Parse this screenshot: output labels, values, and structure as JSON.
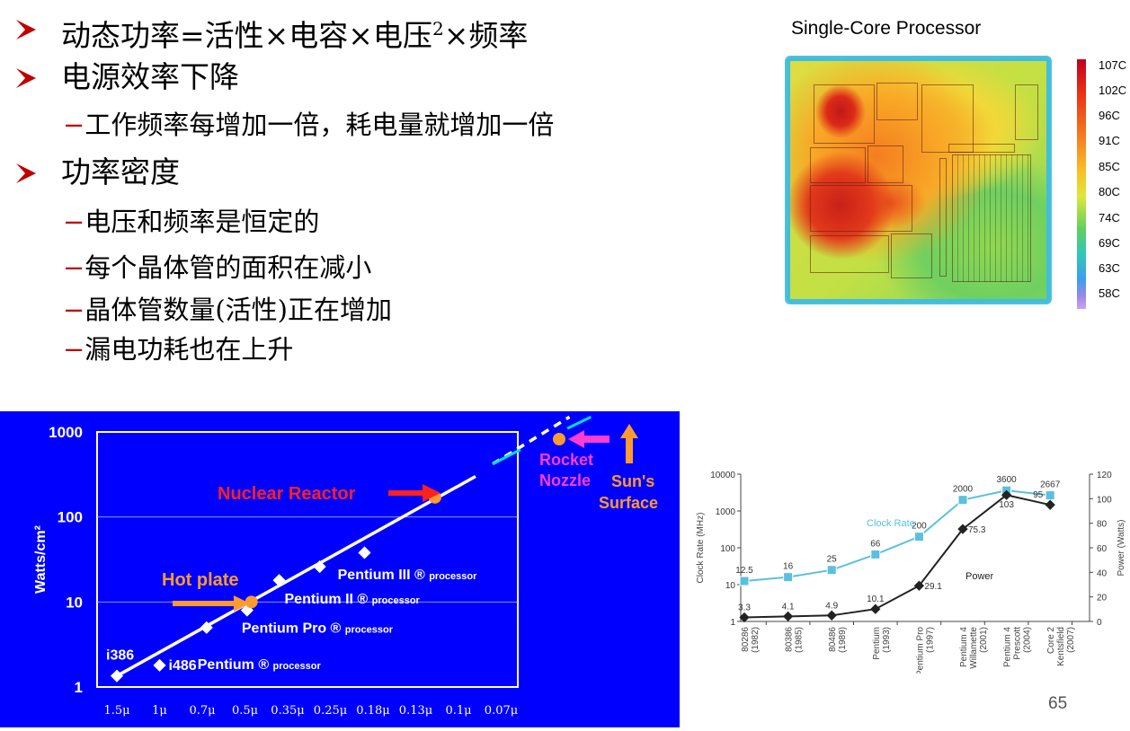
{
  "bullets": [
    {
      "text": "动态功率=活性×电容×电压",
      "sup": "2",
      "tail": "×频率"
    },
    {
      "text": "电源效率下降"
    },
    {
      "text": "功率密度"
    }
  ],
  "sub_bullets": {
    "efficiency": [
      "工作频率每增加一倍，耗电量就增加一倍"
    ],
    "density": [
      "电压和频率是恒定的",
      "每个晶体管的面积在减小",
      "晶体管数量(活性)正在增加",
      "漏电功耗也在上升"
    ]
  },
  "dash": "−",
  "heatmap": {
    "title": "Single-Core Processor",
    "scale_labels": [
      "107C",
      "102C",
      "96C",
      "91C",
      "85C",
      "80C",
      "74C",
      "69C",
      "63C",
      "58C"
    ]
  },
  "page_number": "65",
  "chart_data": [
    {
      "type": "scatter",
      "title": "",
      "ylabel": "Watts/cm²",
      "y_scale": "log",
      "ylim": [
        1,
        1000
      ],
      "y_ticks": [
        "1",
        "10",
        "100",
        "1000"
      ],
      "categories": [
        "1.5μ",
        "1μ",
        "0.7μ",
        "0.5μ",
        "0.35μ",
        "0.25μ",
        "0.18μ",
        "0.13μ",
        "0.1μ",
        "0.07μ"
      ],
      "processors": [
        {
          "name": "i386",
          "label": "i386",
          "x_index": 0.5,
          "y": 1.35
        },
        {
          "name": "i486",
          "label": "i486",
          "x_index": 1.5,
          "y": 1.8
        },
        {
          "name": "Pentium",
          "label": "Pentium ® processor",
          "x_index": 2.6,
          "y": 5
        },
        {
          "name": "Pentium Pro",
          "label": "Pentium Pro ® processor",
          "x_index": 3.55,
          "y": 8
        },
        {
          "name": "Pentium II",
          "label": "Pentium II ® processor",
          "x_index": 4.3,
          "y": 18
        },
        {
          "name": "Pentium III",
          "label": "Pentium III ® processor",
          "x_index": 5.25,
          "y": 26
        },
        {
          "name": "",
          "label": "",
          "x_index": 6.3,
          "y": 38
        }
      ],
      "references": [
        {
          "label": "Hot plate",
          "x_index": 3.65,
          "y": 10
        },
        {
          "label": "Nuclear Reactor",
          "x_index": 7.95,
          "y": 170
        },
        {
          "label": "Rocket Nozzle",
          "x_index": 10.4,
          "y": 850
        },
        {
          "label": "Sun's Surface",
          "x_index": 11.8,
          "y": 900
        }
      ],
      "trend": [
        [
          0.5,
          1.35
        ],
        [
          8.9,
          300
        ]
      ],
      "trend_projection": [
        [
          9.3,
          420
        ],
        [
          11.1,
          1500
        ]
      ],
      "colors": {
        "background": "#0000ff",
        "labels": "#ffffff",
        "hot_plate": "#ff9a2e",
        "nuclear": "#ff2020",
        "rocket": "#ff3cd2",
        "sun": "#ff9a2e",
        "projection": "#00e0e0"
      }
    },
    {
      "type": "line",
      "title": "",
      "categories": [
        "80286 (1982)",
        "80386 (1985)",
        "80486 (1989)",
        "Pentium (1993)",
        "Pentium Pro (1997)",
        "Pentium 4 Willamette (2001)",
        "Pentium 4 Prescott (2004)",
        "Core 2 Kentsfield (2007)"
      ],
      "ylabel_left": "Clock Rate (MHz)",
      "ylabel_right": "Power (Watts)",
      "y_left_scale": "log",
      "y_left_ticks": [
        "1",
        "10",
        "100",
        "1000",
        "10000"
      ],
      "y_right_ticks": [
        "0",
        "20",
        "40",
        "60",
        "80",
        "100",
        "120"
      ],
      "ylim_right": [
        0,
        120
      ],
      "series": [
        {
          "name": "Clock Rate",
          "axis": "left",
          "values": [
            12.5,
            16,
            25,
            66,
            200,
            2000,
            3600,
            2667
          ],
          "labels": [
            "12.5",
            "16",
            "25",
            "66",
            "200",
            "2000",
            "3600",
            "2667"
          ],
          "color": "#5bc0de"
        },
        {
          "name": "Power",
          "axis": "right",
          "values": [
            3.3,
            4.1,
            4.9,
            10.1,
            29.1,
            75.3,
            103,
            95
          ],
          "labels": [
            "3.3",
            "4.1",
            "4.9",
            "10.1",
            "29.1",
            "75.3",
            "103",
            "95"
          ],
          "color": "#222222"
        }
      ]
    }
  ]
}
